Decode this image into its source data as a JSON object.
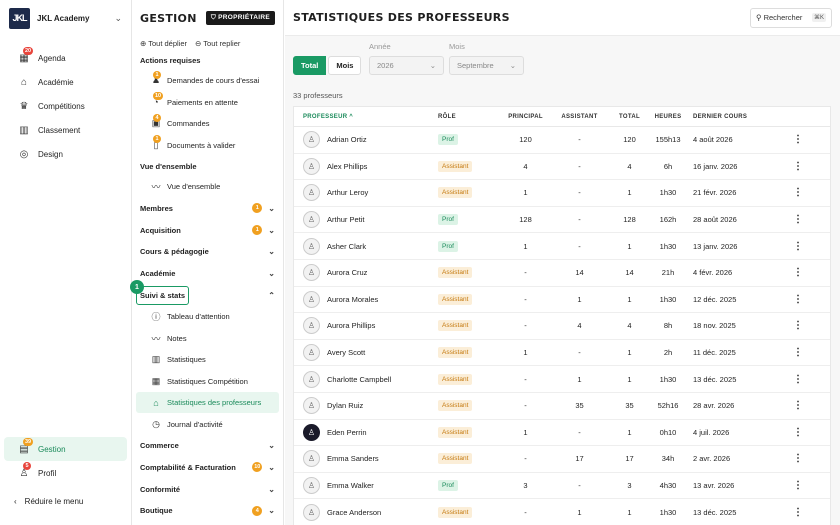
{
  "brand": {
    "logo_text": "JKL",
    "name": "JKL Academy"
  },
  "nav": [
    {
      "name": "agenda",
      "label": "Agenda",
      "icon": "calendar-icon",
      "glyph": "▦",
      "badge": "20"
    },
    {
      "name": "academie",
      "label": "Académie",
      "icon": "school-icon",
      "glyph": "⌂",
      "badge": ""
    },
    {
      "name": "competitions",
      "label": "Compétitions",
      "icon": "trophy-icon",
      "glyph": "♛",
      "badge": ""
    },
    {
      "name": "classement",
      "label": "Classement",
      "icon": "ranking-icon",
      "glyph": "▥",
      "badge": ""
    },
    {
      "name": "design",
      "label": "Design",
      "icon": "palette-icon",
      "glyph": "◎",
      "badge": ""
    }
  ],
  "nav_bottom": [
    {
      "name": "gestion",
      "label": "Gestion",
      "icon": "gestion-icon",
      "glyph": "▤",
      "badge": "39",
      "active": true
    },
    {
      "name": "profil",
      "label": "Profil",
      "icon": "user-icon",
      "glyph": "♙",
      "badge": "5",
      "active": false
    }
  ],
  "collapse_label": "Réduire le menu",
  "gestion": {
    "title": "GESTION",
    "owner_label": "PROPRIÉTAIRE",
    "expand_all": "Tout déplier",
    "collapse_all": "Tout replier",
    "actions_title": "Actions requises",
    "actions": [
      {
        "label": "Demandes de cours d'essai",
        "badge": "1",
        "glyph": "♟"
      },
      {
        "label": "Paiements en attente",
        "badge": "10",
        "glyph": "◔"
      },
      {
        "label": "Commandes",
        "badge": "4",
        "glyph": "▣"
      },
      {
        "label": "Documents à valider",
        "badge": "1",
        "glyph": "▯"
      }
    ],
    "overview_title": "Vue d'ensemble",
    "overview_item": "Vue d'ensemble",
    "groups_top": [
      {
        "label": "Membres",
        "count": "1"
      },
      {
        "label": "Acquisition",
        "count": "1"
      },
      {
        "label": "Cours & pédagogie",
        "count": ""
      },
      {
        "label": "Académie",
        "count": ""
      }
    ],
    "suivi_label": "Suivi & stats",
    "suivi_items": [
      {
        "label": "Tableau d'attention",
        "glyph": "ⓘ",
        "active": false
      },
      {
        "label": "Notes",
        "glyph": "〰",
        "active": false
      },
      {
        "label": "Statistiques",
        "glyph": "▥",
        "active": false
      },
      {
        "label": "Statistiques Compétition",
        "glyph": "▦",
        "active": false
      },
      {
        "label": "Statistiques des professeurs",
        "glyph": "⌂",
        "active": true
      },
      {
        "label": "Journal d'activité",
        "glyph": "◷",
        "active": false
      }
    ],
    "groups_bottom": [
      {
        "label": "Commerce",
        "count": ""
      },
      {
        "label": "Comptabilité & Facturation",
        "count": "10"
      },
      {
        "label": "Conformité",
        "count": ""
      },
      {
        "label": "Boutique",
        "count": "4"
      }
    ],
    "highlight_number": "1"
  },
  "main": {
    "title": "STATISTIQUES DES PROFESSEURS",
    "search_label": "Rechercher",
    "search_kbd": "⌘K",
    "seg_total": "Total",
    "seg_mois": "Mois",
    "annee_label": "Année",
    "annee_value": "2026",
    "mois_label": "Mois",
    "mois_value": "Septembre",
    "count_label": "33 professeurs"
  },
  "table": {
    "headers": {
      "name": "PROFESSEUR ^",
      "role": "RÔLE",
      "principal": "PRINCIPAL",
      "assistant": "ASSISTANT",
      "total": "TOTAL",
      "heures": "HEURES",
      "dernier": "DERNIER COURS"
    },
    "rows": [
      {
        "name": "Adrian Ortiz",
        "role": "Prof",
        "principal": "120",
        "assistant": "-",
        "total": "120",
        "heures": "155h13",
        "dernier": "4 août 2026",
        "avatar": "default"
      },
      {
        "name": "Alex Phillips",
        "role": "Assistant",
        "principal": "4",
        "assistant": "-",
        "total": "4",
        "heures": "6h",
        "dernier": "16 janv. 2026",
        "avatar": "default"
      },
      {
        "name": "Arthur Leroy",
        "role": "Assistant",
        "principal": "1",
        "assistant": "-",
        "total": "1",
        "heures": "1h30",
        "dernier": "21 févr. 2026",
        "avatar": "default"
      },
      {
        "name": "Arthur Petit",
        "role": "Prof",
        "principal": "128",
        "assistant": "-",
        "total": "128",
        "heures": "162h",
        "dernier": "28 août 2026",
        "avatar": "default"
      },
      {
        "name": "Asher Clark",
        "role": "Prof",
        "principal": "1",
        "assistant": "-",
        "total": "1",
        "heures": "1h30",
        "dernier": "13 janv. 2026",
        "avatar": "default"
      },
      {
        "name": "Aurora Cruz",
        "role": "Assistant",
        "principal": "-",
        "assistant": "14",
        "total": "14",
        "heures": "21h",
        "dernier": "4 févr. 2026",
        "avatar": "default"
      },
      {
        "name": "Aurora Morales",
        "role": "Assistant",
        "principal": "-",
        "assistant": "1",
        "total": "1",
        "heures": "1h30",
        "dernier": "12 déc. 2025",
        "avatar": "default"
      },
      {
        "name": "Aurora Phillips",
        "role": "Assistant",
        "principal": "-",
        "assistant": "4",
        "total": "4",
        "heures": "8h",
        "dernier": "18 nov. 2025",
        "avatar": "default"
      },
      {
        "name": "Avery Scott",
        "role": "Assistant",
        "principal": "1",
        "assistant": "-",
        "total": "1",
        "heures": "2h",
        "dernier": "11 déc. 2025",
        "avatar": "default"
      },
      {
        "name": "Charlotte Campbell",
        "role": "Assistant",
        "principal": "-",
        "assistant": "1",
        "total": "1",
        "heures": "1h30",
        "dernier": "13 déc. 2025",
        "avatar": "default"
      },
      {
        "name": "Dylan Ruiz",
        "role": "Assistant",
        "principal": "-",
        "assistant": "35",
        "total": "35",
        "heures": "52h16",
        "dernier": "28 avr. 2026",
        "avatar": "default"
      },
      {
        "name": "Eden Perrin",
        "role": "Assistant",
        "principal": "1",
        "assistant": "-",
        "total": "1",
        "heures": "0h10",
        "dernier": "4 juil. 2026",
        "avatar": "dark"
      },
      {
        "name": "Emma Sanders",
        "role": "Assistant",
        "principal": "-",
        "assistant": "17",
        "total": "17",
        "heures": "34h",
        "dernier": "2 avr. 2026",
        "avatar": "default"
      },
      {
        "name": "Emma Walker",
        "role": "Prof",
        "principal": "3",
        "assistant": "-",
        "total": "3",
        "heures": "4h30",
        "dernier": "13 avr. 2026",
        "avatar": "default"
      },
      {
        "name": "Grace Anderson",
        "role": "Assistant",
        "principal": "-",
        "assistant": "1",
        "total": "1",
        "heures": "1h30",
        "dernier": "13 déc. 2025",
        "avatar": "default"
      }
    ]
  }
}
